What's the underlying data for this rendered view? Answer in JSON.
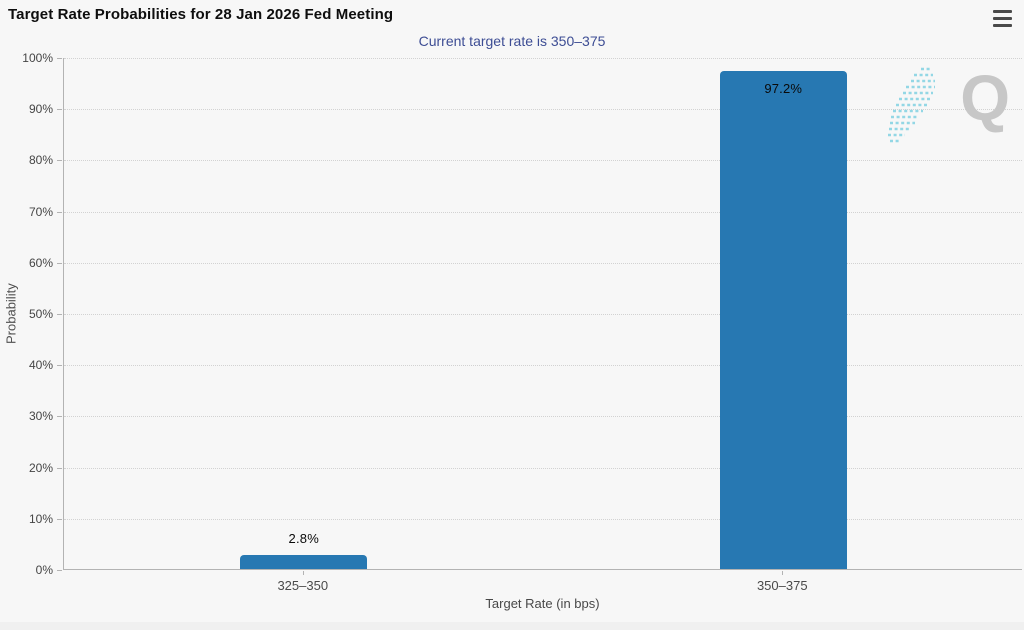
{
  "header": {
    "title": "Target Rate Probabilities for 28 Jan 2026 Fed Meeting"
  },
  "icons": {
    "menu": "hamburger-menu-icon",
    "watermark": "quikstrike-q-logo"
  },
  "chart_data": {
    "type": "bar",
    "title": "Target Rate Probabilities for 28 Jan 2026 Fed Meeting",
    "subtitle": "Current target rate is 350–375",
    "categories": [
      "325–350",
      "350–375"
    ],
    "values": [
      2.8,
      97.2
    ],
    "value_labels": [
      "2.8%",
      "97.2%"
    ],
    "xlabel": "Target Rate (in bps)",
    "ylabel": "Probability",
    "ylim": [
      0,
      100
    ],
    "ytick_labels": [
      "0%",
      "10%",
      "20%",
      "30%",
      "40%",
      "50%",
      "60%",
      "70%",
      "80%",
      "90%",
      "100%"
    ],
    "grid": "horizontal-dotted",
    "legend": "none",
    "bar_color": "#2778b2"
  },
  "watermark": {
    "letter": "Q"
  },
  "colors": {
    "background": "#f7f7f7",
    "bar": "#2778b2",
    "subtitle_text": "#3d4d94",
    "title_text": "#0e0e0e",
    "axis_line": "#b3b3b3",
    "gridline": "#d2d2d2",
    "tick_text": "#4a4a4a",
    "watermark_gray": "#c7c7c7",
    "watermark_cyan": "#82d2e2"
  }
}
